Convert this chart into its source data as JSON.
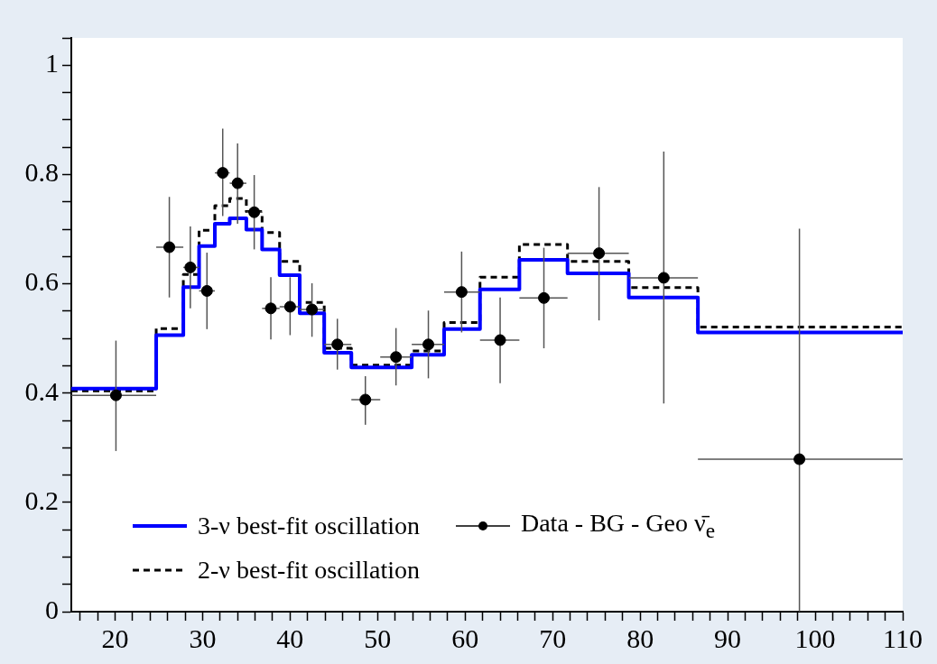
{
  "chart_data": {
    "type": "step",
    "xlim": [
      15,
      110
    ],
    "ylim": [
      0,
      1.05
    ],
    "xticks": [
      {
        "value": 16,
        "label": null
      },
      {
        "value": 18,
        "label": null
      },
      20,
      {
        "value": 22,
        "label": null
      },
      {
        "value": 24,
        "label": null
      },
      {
        "value": 26,
        "label": null
      },
      {
        "value": 28,
        "label": null
      },
      30,
      {
        "value": 32,
        "label": null
      },
      {
        "value": 34,
        "label": null
      },
      {
        "value": 36,
        "label": null
      },
      {
        "value": 38,
        "label": null
      },
      40,
      {
        "value": 42,
        "label": null
      },
      {
        "value": 44,
        "label": null
      },
      {
        "value": 46,
        "label": null
      },
      {
        "value": 48,
        "label": null
      },
      50,
      {
        "value": 52,
        "label": null
      },
      {
        "value": 54,
        "label": null
      },
      {
        "value": 56,
        "label": null
      },
      {
        "value": 58,
        "label": null
      },
      60,
      {
        "value": 62,
        "label": null
      },
      {
        "value": 64,
        "label": null
      },
      {
        "value": 66,
        "label": null
      },
      {
        "value": 68,
        "label": null
      },
      70,
      {
        "value": 72,
        "label": null
      },
      {
        "value": 74,
        "label": null
      },
      {
        "value": 76,
        "label": null
      },
      {
        "value": 78,
        "label": null
      },
      80,
      {
        "value": 82,
        "label": null
      },
      {
        "value": 84,
        "label": null
      },
      {
        "value": 86,
        "label": null
      },
      {
        "value": 88,
        "label": null
      },
      90,
      {
        "value": 92,
        "label": null
      },
      {
        "value": 94,
        "label": null
      },
      {
        "value": 96,
        "label": null
      },
      {
        "value": 98,
        "label": null
      },
      100,
      {
        "value": 102,
        "label": null
      },
      {
        "value": 104,
        "label": null
      },
      {
        "value": 106,
        "label": null
      },
      {
        "value": 108,
        "label": null
      },
      110
    ],
    "yticks": [
      0,
      {
        "value": 0.05,
        "label": null
      },
      {
        "value": 0.1,
        "label": null
      },
      {
        "value": 0.15,
        "label": null
      },
      0.2,
      {
        "value": 0.25,
        "label": null
      },
      {
        "value": 0.3,
        "label": null
      },
      {
        "value": 0.35,
        "label": null
      },
      0.4,
      {
        "value": 0.45,
        "label": null
      },
      {
        "value": 0.5,
        "label": null
      },
      {
        "value": 0.55,
        "label": null
      },
      0.6,
      {
        "value": 0.65,
        "label": null
      },
      {
        "value": 0.7,
        "label": null
      },
      {
        "value": 0.75,
        "label": null
      },
      0.8,
      {
        "value": 0.85,
        "label": null
      },
      {
        "value": 0.9,
        "label": null
      },
      {
        "value": 0.95,
        "label": null
      },
      1,
      {
        "value": 1.05,
        "label": null
      }
    ],
    "grid": false,
    "legend": "bottom left",
    "series": [
      {
        "name": "3-ν best-fit oscillation",
        "type": "step",
        "color": "#0000ff",
        "line_style": "solid",
        "x": [
          15,
          24.7,
          27.8,
          29.6,
          31.4,
          33.1,
          35.0,
          36.8,
          38.8,
          41.1,
          43.9,
          47.0,
          53.9,
          57.6,
          61.7,
          66.2,
          71.7,
          78.7,
          86.6,
          110
        ],
        "values": [
          0.408,
          0.506,
          0.594,
          0.669,
          0.71,
          0.72,
          0.699,
          0.663,
          0.616,
          0.546,
          0.474,
          0.447,
          0.47,
          0.517,
          0.59,
          0.644,
          0.619,
          0.575,
          0.511,
          0.511
        ]
      },
      {
        "name": "2-ν best-fit oscillation",
        "type": "step",
        "color": "#000000",
        "line_style": "dashed",
        "x": [
          15,
          24.7,
          27.8,
          29.6,
          31.4,
          33.1,
          35.0,
          36.8,
          38.8,
          41.1,
          43.9,
          47.0,
          53.9,
          57.6,
          61.7,
          66.2,
          71.7,
          78.7,
          86.6,
          110
        ],
        "values": [
          0.404,
          0.518,
          0.617,
          0.698,
          0.743,
          0.756,
          0.732,
          0.694,
          0.641,
          0.566,
          0.482,
          0.451,
          0.477,
          0.529,
          0.612,
          0.672,
          0.641,
          0.593,
          0.521,
          0.521
        ]
      },
      {
        "name": "Data - BG - Geo ν̄$_{e}$",
        "type": "scatter",
        "color": "#000000",
        "marker": "circle",
        "x": [
          20.1,
          26.2,
          28.6,
          30.5,
          32.3,
          34.0,
          35.9,
          37.8,
          40.0,
          42.5,
          45.4,
          48.6,
          52.1,
          55.8,
          59.6,
          64.0,
          69.0,
          75.3,
          82.7,
          98.2
        ],
        "values": [
          0.396,
          0.667,
          0.63,
          0.587,
          0.803,
          0.784,
          0.731,
          0.555,
          0.558,
          0.553,
          0.489,
          0.388,
          0.466,
          0.489,
          0.585,
          0.497,
          0.574,
          0.656,
          0.611,
          0.279
        ],
        "errors": [
          [
            0.294,
            0.496
          ],
          [
            0.575,
            0.759
          ],
          [
            0.555,
            0.705
          ],
          [
            0.517,
            0.657
          ],
          [
            0.724,
            0.884
          ],
          [
            0.71,
            0.857
          ],
          [
            0.663,
            0.799
          ],
          [
            0.498,
            0.612
          ],
          [
            0.506,
            0.612
          ],
          [
            0.503,
            0.601
          ],
          [
            0.443,
            0.536
          ],
          [
            0.342,
            0.431
          ],
          [
            0.414,
            0.519
          ],
          [
            0.427,
            0.551
          ],
          [
            0.511,
            0.659
          ],
          [
            0.418,
            0.575
          ],
          [
            0.482,
            0.666
          ],
          [
            0.533,
            0.777
          ],
          [
            0.381,
            0.842
          ],
          [
            0,
            0.701
          ]
        ],
        "xerrors": [
          [
            15,
            24.7
          ],
          [
            24.7,
            27.8
          ],
          [
            27.8,
            29.6
          ],
          [
            29.6,
            31.4
          ],
          [
            31.4,
            33.1
          ],
          [
            33.1,
            35.0
          ],
          [
            35.0,
            36.8
          ],
          [
            36.8,
            38.8
          ],
          [
            38.8,
            41.1
          ],
          [
            41.1,
            43.9
          ],
          [
            43.9,
            47.0
          ],
          [
            47.0,
            50.3
          ],
          [
            50.3,
            53.9
          ],
          [
            53.9,
            57.6
          ],
          [
            57.6,
            61.7
          ],
          [
            61.7,
            66.2
          ],
          [
            66.2,
            71.7
          ],
          [
            71.7,
            78.7
          ],
          [
            78.7,
            86.6
          ],
          [
            86.6,
            110
          ]
        ]
      }
    ]
  }
}
